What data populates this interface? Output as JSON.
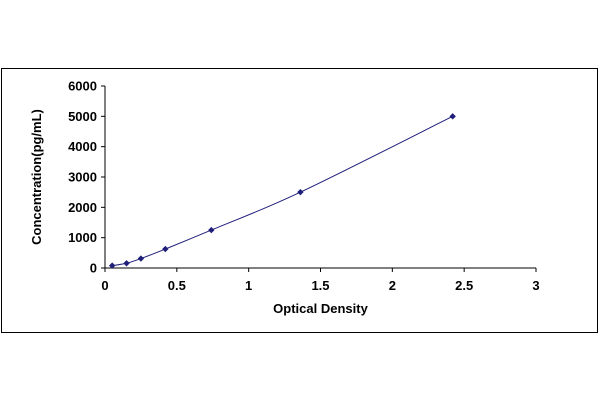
{
  "chart_data": {
    "type": "scatter",
    "title": "",
    "xlabel": "Optical Density",
    "ylabel": "Concentration(pg/mL)",
    "xlim": [
      0,
      3
    ],
    "ylim": [
      0,
      6000
    ],
    "x_ticks": [
      0,
      0.5,
      1,
      1.5,
      2,
      2.5,
      3
    ],
    "x_tick_labels": [
      "0",
      "0.5",
      "1",
      "1.5",
      "2",
      "2.5",
      "3"
    ],
    "y_ticks": [
      0,
      1000,
      2000,
      3000,
      4000,
      5000,
      6000
    ],
    "y_tick_labels": [
      "0",
      "1000",
      "2000",
      "3000",
      "4000",
      "5000",
      "6000"
    ],
    "grid": false,
    "legend": "none",
    "marker_color": "#1f1f7a",
    "line_color": "#1f1f7a",
    "series": [
      {
        "x": [
          0.05,
          0.15,
          0.25,
          0.42,
          0.74,
          1.36,
          2.42
        ],
        "y": [
          78,
          156,
          312,
          625,
          1250,
          2500,
          5000
        ]
      }
    ]
  }
}
